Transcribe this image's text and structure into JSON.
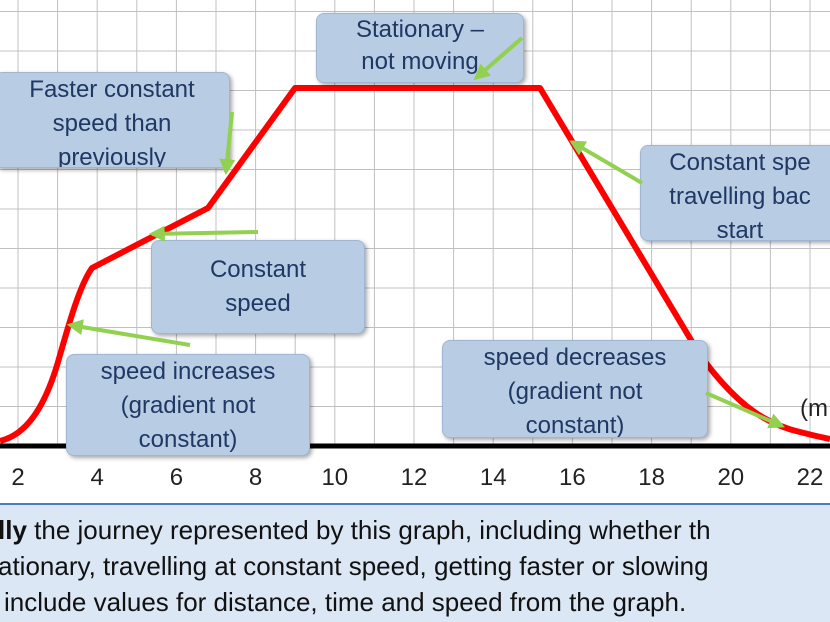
{
  "graph": {
    "x_ticks": [
      "2",
      "4",
      "6",
      "8",
      "10",
      "12",
      "14",
      "16",
      "18",
      "20",
      "22"
    ],
    "axis_label_partial": "(m",
    "colors": {
      "line": "#ff0000",
      "arrow": "#92d050",
      "grid": "#c0c0c0",
      "callout_bg": "#b8cce4",
      "callout_text": "#1f3864"
    }
  },
  "callouts": {
    "stationary": [
      "Stationary –",
      "not moving"
    ],
    "faster": [
      "Faster constant",
      "speed than",
      "previously"
    ],
    "constant_back": [
      "Constant spe",
      "travelling bac",
      "start"
    ],
    "constant": [
      "Constant",
      "speed"
    ],
    "increases": [
      "speed increases",
      "(gradient not",
      "constant)"
    ],
    "decreases": [
      "speed decreases",
      "(gradient not",
      "constant)"
    ]
  },
  "task": {
    "bold_fragment": "lly",
    "line1_rest": " the journey represented by this graph, including whether th",
    "line2": "ationary, travelling at constant speed, getting faster or slowing",
    "line3": "include values for distance, time and speed from the graph."
  }
}
